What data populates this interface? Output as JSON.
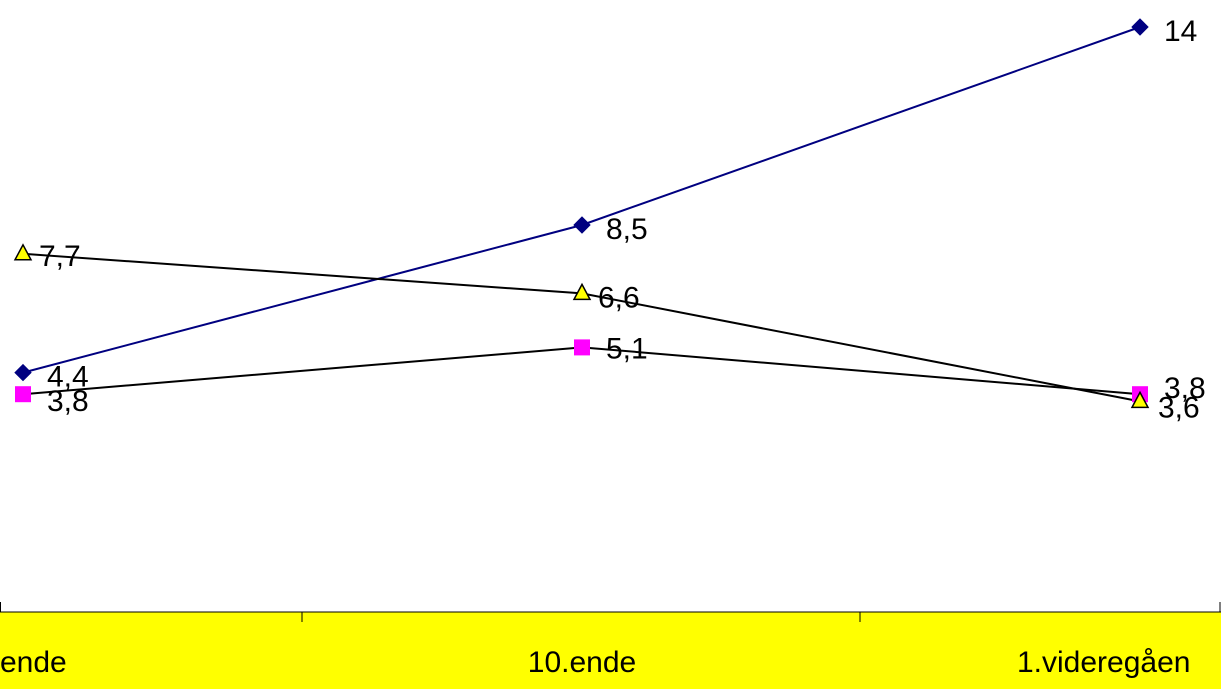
{
  "chart_data": {
    "type": "line",
    "categories": [
      "ende",
      "10.ende",
      "1.videregåen"
    ],
    "series": [
      {
        "values": [
          4.4,
          8.5,
          14
        ],
        "labels": [
          "4,4",
          "8,5",
          "14"
        ],
        "color": "#000080",
        "line_color": "#000080",
        "marker": "diamond"
      },
      {
        "values": [
          3.8,
          5.1,
          3.8
        ],
        "labels": [
          "3,8",
          "5,1",
          "3,8"
        ],
        "color": "#FF00FF",
        "line_color": "#000000",
        "marker": "square"
      },
      {
        "values": [
          7.7,
          6.6,
          3.6
        ],
        "labels": [
          "7,7",
          "6,6",
          "3,6"
        ],
        "color": "#FFFF00",
        "line_color": "#000000",
        "marker": "triangle"
      }
    ],
    "ylim": [
      0,
      14.5
    ],
    "grid": false,
    "category_band_color": "#FFFF00"
  }
}
